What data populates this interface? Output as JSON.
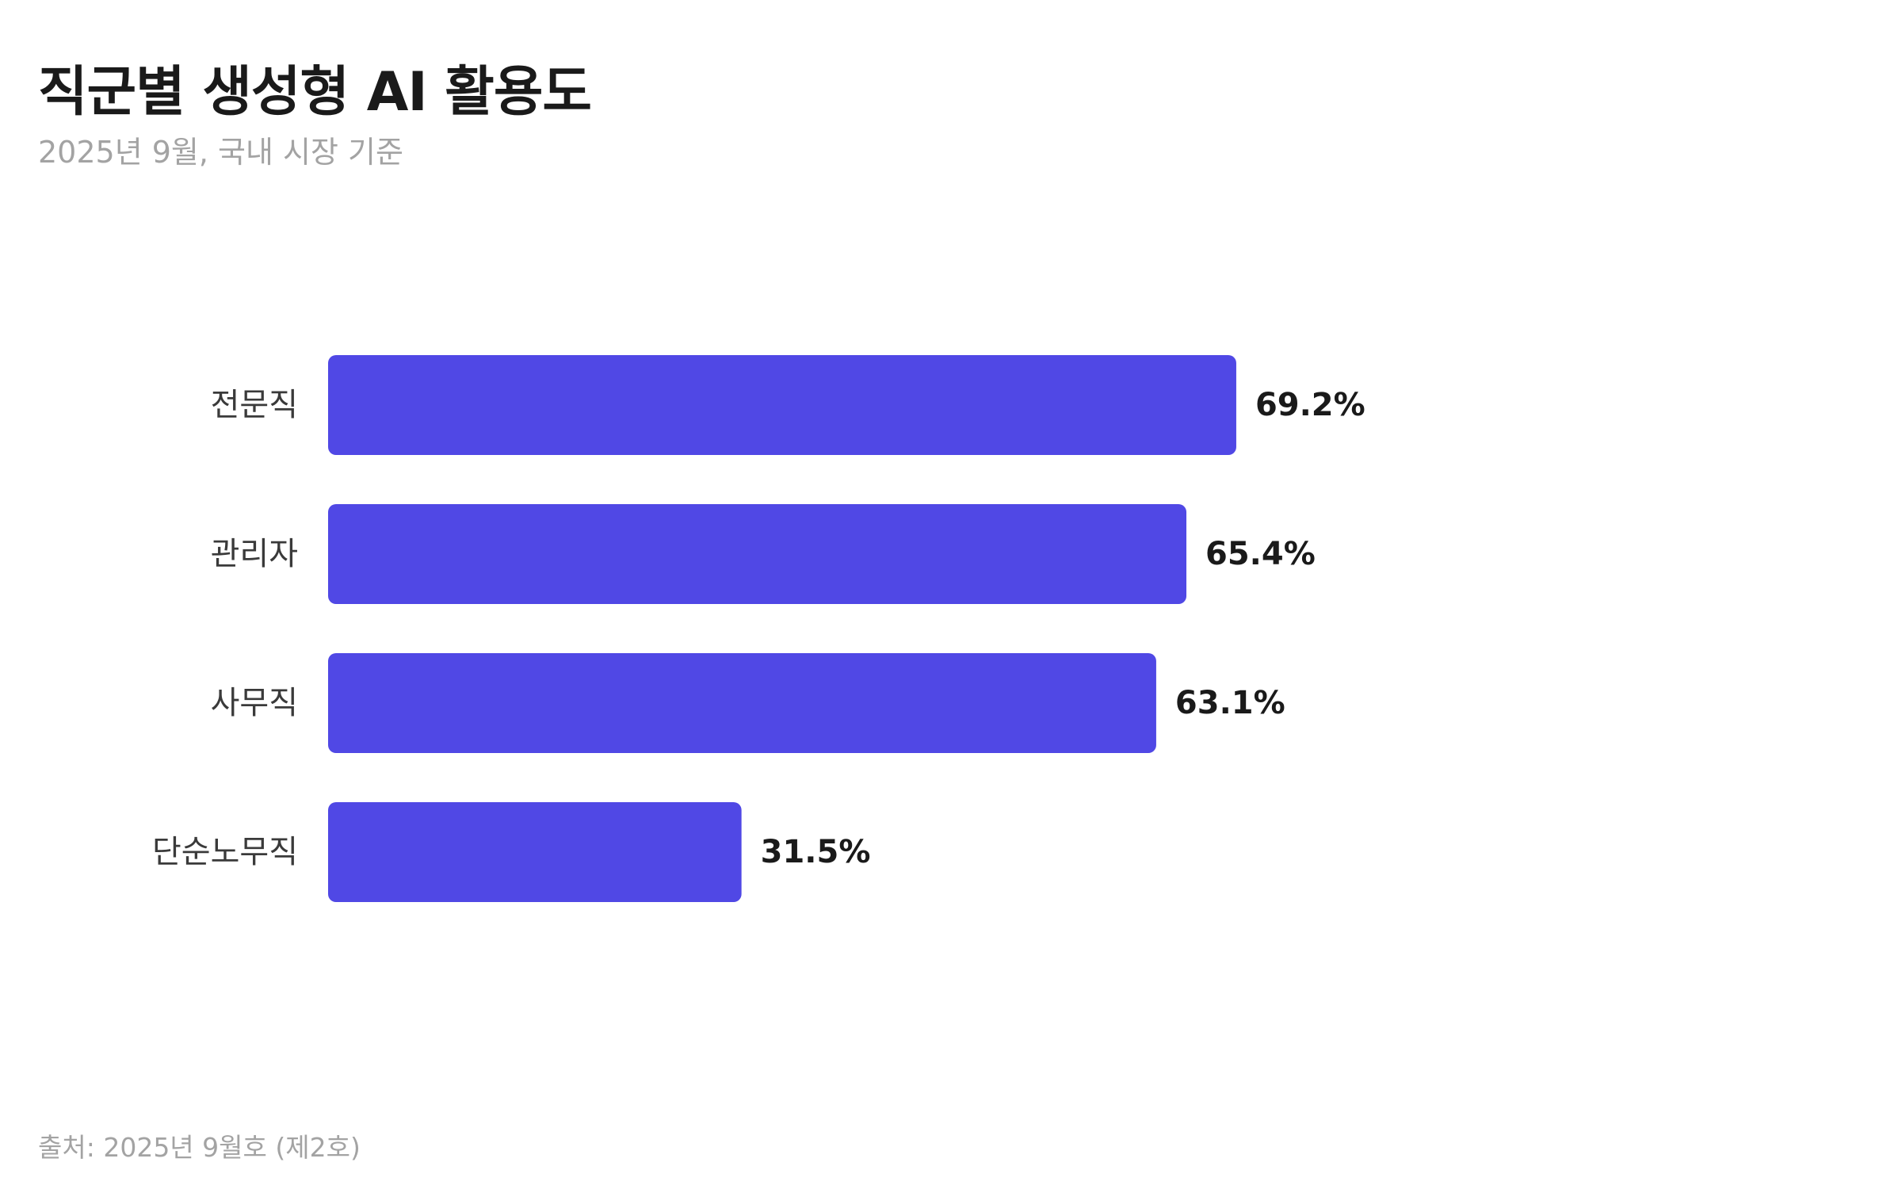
{
  "chart_data": {
    "type": "bar",
    "orientation": "horizontal",
    "title": "직군별 생성형 AI 활용도",
    "subtitle": "2025년 9월, 국내 시장 기준",
    "source": "출처: 2025년 9월호 (제2호)",
    "categories": [
      "전문직",
      "관리자",
      "사무직",
      "단순노무직"
    ],
    "values": [
      69.2,
      65.4,
      63.1,
      31.5
    ],
    "value_labels": [
      "69.2%",
      "65.4%",
      "63.1%",
      "31.5%"
    ],
    "unit": "%",
    "xlim": [
      0,
      100
    ],
    "grid": false,
    "legend": "none",
    "bar_color": "#5048e5"
  }
}
